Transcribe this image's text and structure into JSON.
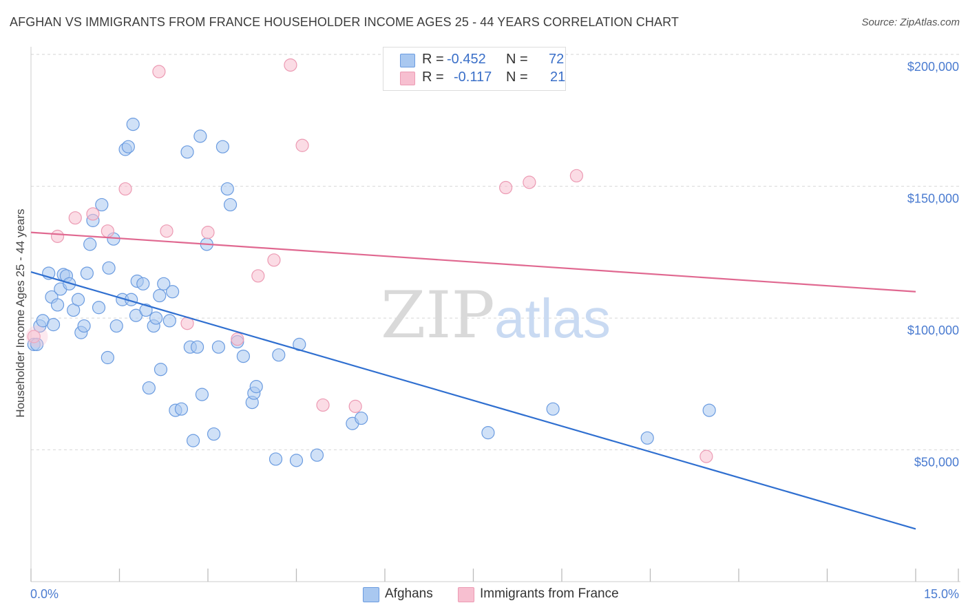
{
  "title": "AFGHAN VS IMMIGRANTS FROM FRANCE HOUSEHOLDER INCOME AGES 25 - 44 YEARS CORRELATION CHART",
  "source": "Source: ZipAtlas.com",
  "watermark": {
    "zip": "ZIP",
    "atlas": "atlas"
  },
  "stats": [
    {
      "r_label": "R =",
      "r_value": "-0.452",
      "n_label": "N =",
      "n_value": "72",
      "color": "#a9c8f0"
    },
    {
      "r_label": "R =",
      "r_value": "-0.117",
      "n_label": "N =",
      "n_value": "21",
      "color": "#f7bfd0"
    }
  ],
  "legend": [
    {
      "label": "Afghans",
      "color": "#a9c8f0"
    },
    {
      "label": "Immigrants from France",
      "color": "#f7bfd0"
    }
  ],
  "chart_data": {
    "type": "scatter",
    "title": "AFGHAN VS IMMIGRANTS FROM FRANCE HOUSEHOLDER INCOME AGES 25 - 44 YEARS CORRELATION CHART",
    "xlabel": "",
    "ylabel": "Householder Income Ages 25 - 44 years",
    "xlim": [
      0,
      15
    ],
    "ylim": [
      0,
      205000
    ],
    "x_tick_labels": [
      "0.0%",
      "15.0%"
    ],
    "y_ticks": [
      {
        "value": 50000,
        "label": "$50,000"
      },
      {
        "value": 100000,
        "label": "$100,000"
      },
      {
        "value": 150000,
        "label": "$150,000"
      },
      {
        "value": 200000,
        "label": "$200,000"
      }
    ],
    "grid": true,
    "series": [
      {
        "name": "Afghans",
        "color": "#a9c8f0",
        "stroke": "#6a9be0",
        "line_color": "#2f6fd0",
        "trend": {
          "x": [
            0,
            15
          ],
          "y": [
            117500,
            20000
          ]
        },
        "points": [
          [
            0.05,
            90000
          ],
          [
            0.1,
            90000
          ],
          [
            0.15,
            97000
          ],
          [
            0.2,
            99000
          ],
          [
            0.3,
            117000
          ],
          [
            0.35,
            108000
          ],
          [
            0.38,
            97500
          ],
          [
            0.45,
            105000
          ],
          [
            0.5,
            111000
          ],
          [
            0.55,
            116500
          ],
          [
            0.6,
            116000
          ],
          [
            0.65,
            113000
          ],
          [
            0.72,
            103000
          ],
          [
            0.8,
            107000
          ],
          [
            0.85,
            94500
          ],
          [
            0.9,
            97000
          ],
          [
            0.95,
            117000
          ],
          [
            1.0,
            128000
          ],
          [
            1.05,
            137000
          ],
          [
            1.15,
            104000
          ],
          [
            1.2,
            143000
          ],
          [
            1.3,
            85000
          ],
          [
            1.32,
            119000
          ],
          [
            1.4,
            130000
          ],
          [
            1.45,
            97000
          ],
          [
            1.55,
            107000
          ],
          [
            1.6,
            164000
          ],
          [
            1.65,
            165000
          ],
          [
            1.7,
            107000
          ],
          [
            1.73,
            173500
          ],
          [
            1.78,
            101000
          ],
          [
            1.8,
            114000
          ],
          [
            1.9,
            113000
          ],
          [
            1.95,
            103000
          ],
          [
            2.0,
            73500
          ],
          [
            2.08,
            97000
          ],
          [
            2.12,
            100000
          ],
          [
            2.18,
            108500
          ],
          [
            2.2,
            80500
          ],
          [
            2.25,
            113000
          ],
          [
            2.35,
            99000
          ],
          [
            2.4,
            110000
          ],
          [
            2.45,
            65000
          ],
          [
            2.55,
            65500
          ],
          [
            2.65,
            163000
          ],
          [
            2.7,
            89000
          ],
          [
            2.75,
            53500
          ],
          [
            2.82,
            89000
          ],
          [
            2.87,
            169000
          ],
          [
            2.9,
            71000
          ],
          [
            2.98,
            128000
          ],
          [
            3.1,
            56000
          ],
          [
            3.18,
            89000
          ],
          [
            3.25,
            165000
          ],
          [
            3.33,
            149000
          ],
          [
            3.38,
            143000
          ],
          [
            3.5,
            91000
          ],
          [
            3.6,
            85500
          ],
          [
            3.75,
            68000
          ],
          [
            3.78,
            71500
          ],
          [
            3.82,
            74000
          ],
          [
            4.15,
            46500
          ],
          [
            4.2,
            86000
          ],
          [
            4.5,
            46000
          ],
          [
            4.55,
            90000
          ],
          [
            4.85,
            48000
          ],
          [
            5.45,
            60000
          ],
          [
            5.6,
            62000
          ],
          [
            7.75,
            56500
          ],
          [
            8.85,
            65500
          ],
          [
            10.45,
            54500
          ],
          [
            11.5,
            65000
          ]
        ]
      },
      {
        "name": "Immigrants from France",
        "color": "#f7bfd0",
        "stroke": "#ec9ab3",
        "line_color": "#e06890",
        "trend": {
          "x": [
            0,
            15
          ],
          "y": [
            132500,
            110000
          ]
        },
        "points": [
          [
            0.05,
            93000
          ],
          [
            0.45,
            131000
          ],
          [
            0.75,
            138000
          ],
          [
            1.05,
            139500
          ],
          [
            1.3,
            133000
          ],
          [
            1.6,
            149000
          ],
          [
            2.17,
            193500
          ],
          [
            2.3,
            133000
          ],
          [
            2.65,
            98000
          ],
          [
            3.0,
            132500
          ],
          [
            3.5,
            92000
          ],
          [
            3.85,
            116000
          ],
          [
            4.12,
            122000
          ],
          [
            4.4,
            196000
          ],
          [
            4.6,
            165500
          ],
          [
            4.95,
            67000
          ],
          [
            5.5,
            66500
          ],
          [
            8.05,
            149500
          ],
          [
            8.45,
            151500
          ],
          [
            9.25,
            154000
          ],
          [
            11.45,
            47500
          ]
        ]
      }
    ]
  }
}
